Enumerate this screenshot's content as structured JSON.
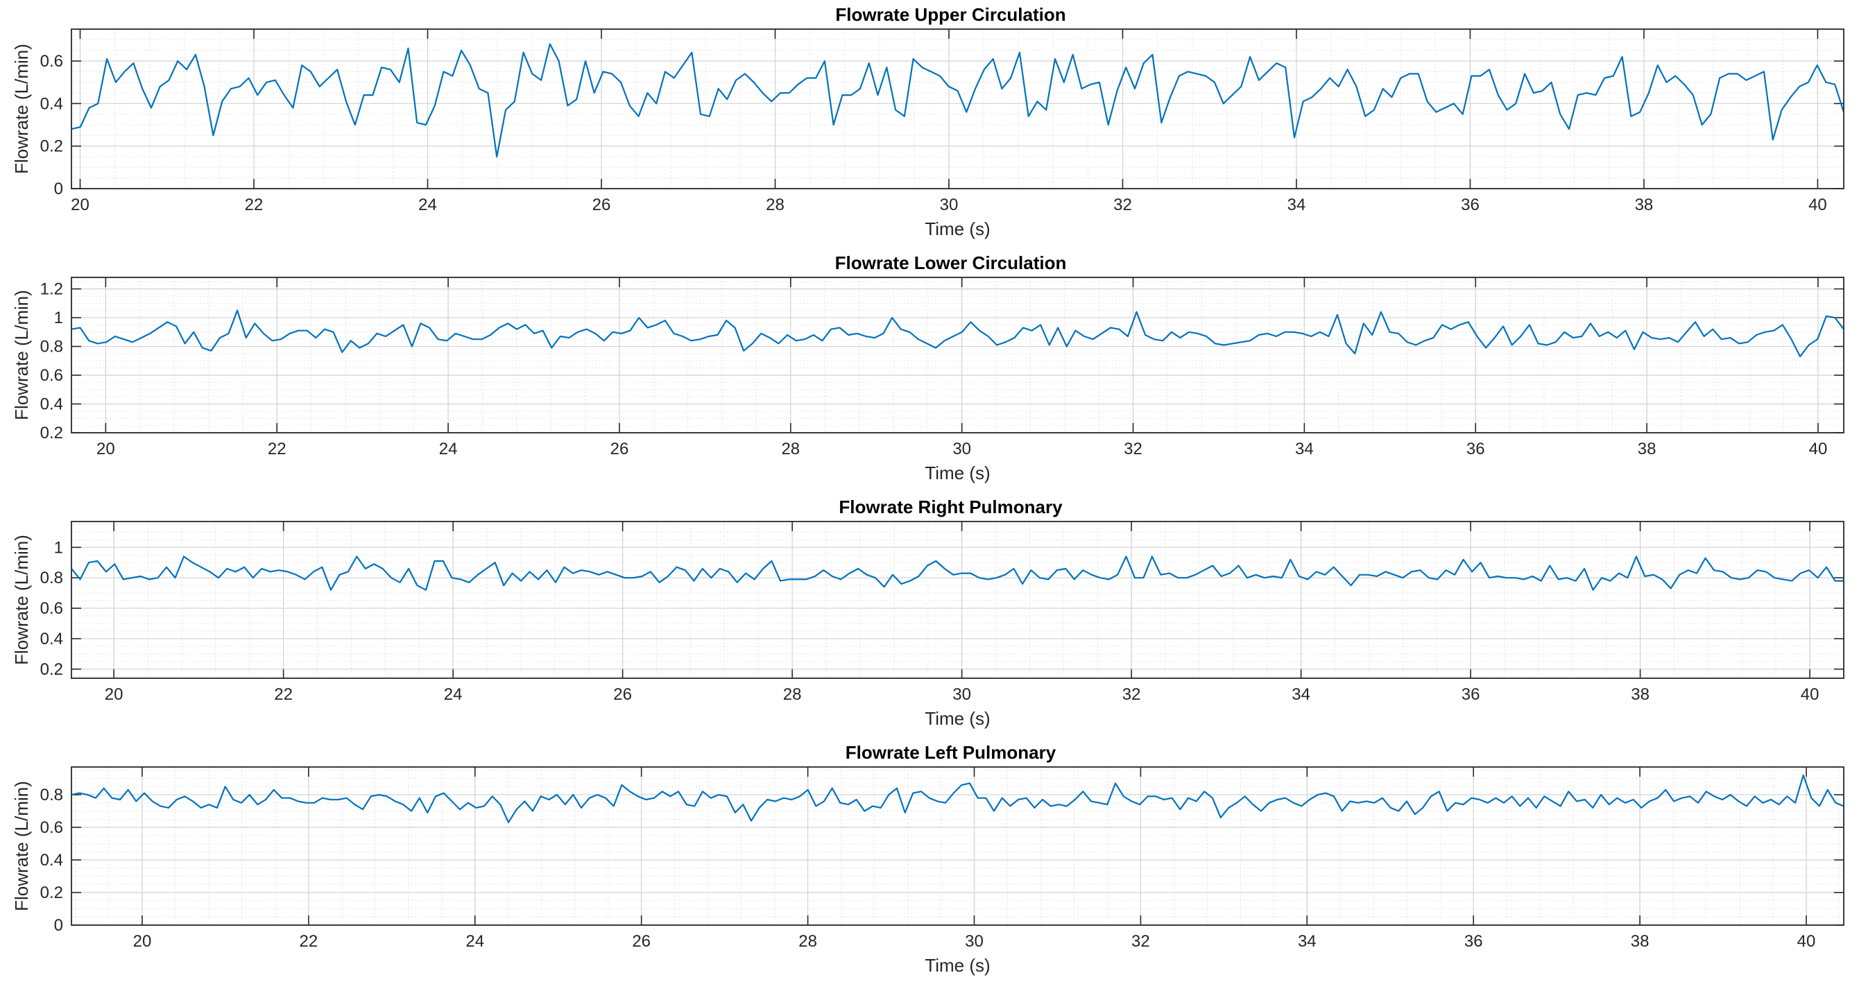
{
  "figure": {
    "title": ""
  },
  "chart_data": [
    {
      "type": "line",
      "title": "Flowrate Upper Circulation",
      "xlabel": "Time (s)",
      "ylabel": "Flowrate (L/min)",
      "xlim": [
        19.9,
        40.3
      ],
      "ylim": [
        0,
        0.75
      ],
      "xticks": [
        20,
        22,
        24,
        26,
        28,
        30,
        32,
        34,
        36,
        38,
        40
      ],
      "yticks": [
        0,
        0.2,
        0.4,
        0.6
      ],
      "ytick_labels": [
        "0",
        "0.2",
        "0.4",
        "0.6"
      ],
      "grid": "on",
      "color": "#0072BD",
      "series": [
        {
          "name": "Upper",
          "x_start": 19.9,
          "x_end": 40.3,
          "values": [
            0.28,
            0.29,
            0.38,
            0.4,
            0.61,
            0.5,
            0.55,
            0.59,
            0.47,
            0.38,
            0.48,
            0.51,
            0.6,
            0.56,
            0.63,
            0.48,
            0.25,
            0.41,
            0.47,
            0.48,
            0.52,
            0.44,
            0.5,
            0.51,
            0.44,
            0.38,
            0.58,
            0.55,
            0.48,
            0.52,
            0.56,
            0.41,
            0.3,
            0.44,
            0.44,
            0.57,
            0.56,
            0.5,
            0.66,
            0.31,
            0.3,
            0.39,
            0.55,
            0.53,
            0.65,
            0.58,
            0.47,
            0.45,
            0.15,
            0.37,
            0.41,
            0.64,
            0.54,
            0.51,
            0.68,
            0.6,
            0.39,
            0.42,
            0.6,
            0.45,
            0.55,
            0.54,
            0.5,
            0.39,
            0.34,
            0.45,
            0.4,
            0.55,
            0.52,
            0.58,
            0.64,
            0.35,
            0.34,
            0.47,
            0.42,
            0.51,
            0.54,
            0.5,
            0.45,
            0.41,
            0.45,
            0.45,
            0.49,
            0.52,
            0.52,
            0.6,
            0.3,
            0.44,
            0.44,
            0.47,
            0.59,
            0.44,
            0.57,
            0.37,
            0.34,
            0.61,
            0.57,
            0.55,
            0.53,
            0.48,
            0.46,
            0.36,
            0.47,
            0.56,
            0.61,
            0.47,
            0.52,
            0.64,
            0.34,
            0.41,
            0.37,
            0.61,
            0.5,
            0.63,
            0.47,
            0.49,
            0.5,
            0.3,
            0.46,
            0.57,
            0.47,
            0.59,
            0.63,
            0.31,
            0.43,
            0.53,
            0.55,
            0.54,
            0.53,
            0.5,
            0.4,
            0.44,
            0.48,
            0.62,
            0.51,
            0.55,
            0.59,
            0.57,
            0.24,
            0.41,
            0.43,
            0.47,
            0.52,
            0.48,
            0.56,
            0.48,
            0.34,
            0.37,
            0.47,
            0.43,
            0.52,
            0.54,
            0.54,
            0.41,
            0.36,
            0.38,
            0.4,
            0.35,
            0.53,
            0.53,
            0.56,
            0.44,
            0.37,
            0.4,
            0.54,
            0.45,
            0.46,
            0.5,
            0.35,
            0.28,
            0.44,
            0.45,
            0.44,
            0.52,
            0.53,
            0.62,
            0.34,
            0.36,
            0.45,
            0.58,
            0.5,
            0.53,
            0.49,
            0.44,
            0.3,
            0.35,
            0.52,
            0.54,
            0.54,
            0.51,
            0.53,
            0.55,
            0.23,
            0.37,
            0.43,
            0.48,
            0.5,
            0.58,
            0.5,
            0.49,
            0.36
          ]
        }
      ]
    },
    {
      "type": "line",
      "title": "Flowrate Lower Circulation",
      "xlabel": "Time (s)",
      "ylabel": "Flowrate (L/min)",
      "xlim": [
        19.6,
        40.3
      ],
      "ylim": [
        0.2,
        1.28
      ],
      "xticks": [
        20,
        22,
        24,
        26,
        28,
        30,
        32,
        34,
        36,
        38,
        40
      ],
      "yticks": [
        0.2,
        0.4,
        0.6,
        0.8,
        1,
        1.2
      ],
      "ytick_labels": [
        "0.2",
        "0.4",
        "0.6",
        "0.8",
        "1",
        "1.2"
      ],
      "grid": "on",
      "color": "#0072BD",
      "series": [
        {
          "name": "Lower",
          "x_start": 19.6,
          "x_end": 40.3,
          "values": [
            0.92,
            0.93,
            0.84,
            0.82,
            0.83,
            0.87,
            0.85,
            0.83,
            0.86,
            0.89,
            0.93,
            0.97,
            0.94,
            0.82,
            0.9,
            0.79,
            0.77,
            0.86,
            0.89,
            1.05,
            0.86,
            0.96,
            0.89,
            0.84,
            0.85,
            0.89,
            0.91,
            0.91,
            0.86,
            0.92,
            0.9,
            0.76,
            0.84,
            0.79,
            0.82,
            0.89,
            0.87,
            0.91,
            0.95,
            0.8,
            0.96,
            0.93,
            0.85,
            0.84,
            0.89,
            0.87,
            0.85,
            0.85,
            0.88,
            0.93,
            0.96,
            0.92,
            0.95,
            0.89,
            0.91,
            0.79,
            0.87,
            0.86,
            0.9,
            0.92,
            0.89,
            0.84,
            0.9,
            0.89,
            0.91,
            1.0,
            0.93,
            0.95,
            0.98,
            0.89,
            0.87,
            0.84,
            0.85,
            0.87,
            0.88,
            0.98,
            0.93,
            0.77,
            0.82,
            0.89,
            0.86,
            0.82,
            0.88,
            0.84,
            0.85,
            0.88,
            0.84,
            0.92,
            0.93,
            0.88,
            0.89,
            0.87,
            0.86,
            0.89,
            1.0,
            0.92,
            0.9,
            0.85,
            0.82,
            0.79,
            0.84,
            0.87,
            0.9,
            0.97,
            0.91,
            0.87,
            0.81,
            0.83,
            0.86,
            0.93,
            0.91,
            0.95,
            0.81,
            0.93,
            0.8,
            0.91,
            0.87,
            0.85,
            0.89,
            0.93,
            0.92,
            0.87,
            1.04,
            0.88,
            0.85,
            0.84,
            0.9,
            0.86,
            0.9,
            0.89,
            0.87,
            0.82,
            0.81,
            0.82,
            0.83,
            0.84,
            0.88,
            0.89,
            0.87,
            0.9,
            0.9,
            0.89,
            0.87,
            0.9,
            0.87,
            1.02,
            0.82,
            0.75,
            0.96,
            0.88,
            1.04,
            0.9,
            0.89,
            0.83,
            0.81,
            0.84,
            0.86,
            0.95,
            0.92,
            0.95,
            0.97,
            0.87,
            0.79,
            0.86,
            0.94,
            0.81,
            0.87,
            0.95,
            0.82,
            0.81,
            0.83,
            0.9,
            0.86,
            0.87,
            0.96,
            0.87,
            0.9,
            0.86,
            0.91,
            0.78,
            0.9,
            0.86,
            0.85,
            0.86,
            0.83,
            0.9,
            0.97,
            0.87,
            0.92,
            0.85,
            0.86,
            0.82,
            0.83,
            0.88,
            0.9,
            0.91,
            0.95,
            0.85,
            0.73,
            0.81,
            0.85,
            1.01,
            1.0,
            0.92
          ]
        }
      ]
    },
    {
      "type": "line",
      "title": "Flowrate Right Pulmonary",
      "xlabel": "Time (s)",
      "ylabel": "Flowrate (L/min)",
      "xlim": [
        19.5,
        40.4
      ],
      "ylim": [
        0.14,
        1.17
      ],
      "xticks": [
        20,
        22,
        24,
        26,
        28,
        30,
        32,
        34,
        36,
        38,
        40
      ],
      "yticks": [
        0.2,
        0.4,
        0.6,
        0.8,
        1
      ],
      "ytick_labels": [
        "0.2",
        "0.4",
        "0.6",
        "0.8",
        "1"
      ],
      "grid": "on",
      "color": "#0072BD",
      "series": [
        {
          "name": "Right",
          "x_start": 19.5,
          "x_end": 40.4,
          "values": [
            0.86,
            0.79,
            0.9,
            0.91,
            0.84,
            0.89,
            0.79,
            0.8,
            0.81,
            0.79,
            0.8,
            0.87,
            0.8,
            0.94,
            0.9,
            0.87,
            0.84,
            0.8,
            0.86,
            0.84,
            0.87,
            0.8,
            0.86,
            0.84,
            0.85,
            0.84,
            0.82,
            0.79,
            0.84,
            0.87,
            0.72,
            0.82,
            0.84,
            0.94,
            0.86,
            0.89,
            0.86,
            0.8,
            0.77,
            0.86,
            0.75,
            0.72,
            0.91,
            0.91,
            0.8,
            0.79,
            0.77,
            0.82,
            0.86,
            0.9,
            0.75,
            0.83,
            0.78,
            0.84,
            0.79,
            0.85,
            0.77,
            0.87,
            0.83,
            0.85,
            0.84,
            0.82,
            0.84,
            0.82,
            0.8,
            0.8,
            0.81,
            0.84,
            0.77,
            0.81,
            0.87,
            0.85,
            0.78,
            0.86,
            0.8,
            0.86,
            0.84,
            0.77,
            0.83,
            0.79,
            0.86,
            0.91,
            0.78,
            0.79,
            0.79,
            0.79,
            0.81,
            0.85,
            0.81,
            0.79,
            0.83,
            0.86,
            0.82,
            0.8,
            0.74,
            0.82,
            0.76,
            0.78,
            0.81,
            0.88,
            0.91,
            0.86,
            0.82,
            0.83,
            0.83,
            0.8,
            0.79,
            0.8,
            0.82,
            0.86,
            0.76,
            0.85,
            0.8,
            0.79,
            0.85,
            0.86,
            0.79,
            0.85,
            0.82,
            0.8,
            0.79,
            0.82,
            0.94,
            0.8,
            0.8,
            0.94,
            0.82,
            0.83,
            0.8,
            0.8,
            0.82,
            0.85,
            0.88,
            0.81,
            0.83,
            0.88,
            0.8,
            0.82,
            0.8,
            0.81,
            0.8,
            0.92,
            0.81,
            0.79,
            0.84,
            0.82,
            0.87,
            0.81,
            0.75,
            0.82,
            0.82,
            0.81,
            0.84,
            0.82,
            0.8,
            0.84,
            0.85,
            0.8,
            0.79,
            0.85,
            0.82,
            0.92,
            0.84,
            0.9,
            0.8,
            0.81,
            0.8,
            0.8,
            0.79,
            0.81,
            0.78,
            0.88,
            0.79,
            0.8,
            0.78,
            0.86,
            0.72,
            0.8,
            0.78,
            0.83,
            0.8,
            0.94,
            0.81,
            0.82,
            0.79,
            0.73,
            0.82,
            0.85,
            0.83,
            0.93,
            0.85,
            0.84,
            0.8,
            0.79,
            0.8,
            0.85,
            0.84,
            0.8,
            0.79,
            0.78,
            0.83,
            0.85,
            0.8,
            0.87,
            0.78,
            0.78
          ]
        }
      ]
    },
    {
      "type": "line",
      "title": "Flowrate Left Pulmonary",
      "xlabel": "Time (s)",
      "ylabel": "Flowrate (L/min)",
      "xlim": [
        19.15,
        40.45
      ],
      "ylim": [
        0,
        0.97
      ],
      "xticks": [
        20,
        22,
        24,
        26,
        28,
        30,
        32,
        34,
        36,
        38,
        40
      ],
      "yticks": [
        0,
        0.2,
        0.4,
        0.6,
        0.8
      ],
      "ytick_labels": [
        "0",
        "0.2",
        "0.4",
        "0.6",
        "0.8"
      ],
      "grid": "on",
      "color": "#0072BD",
      "series": [
        {
          "name": "Left",
          "x_start": 19.15,
          "x_end": 40.45,
          "values": [
            0.8,
            0.81,
            0.8,
            0.78,
            0.84,
            0.78,
            0.77,
            0.83,
            0.76,
            0.81,
            0.76,
            0.73,
            0.72,
            0.77,
            0.79,
            0.76,
            0.72,
            0.74,
            0.72,
            0.85,
            0.77,
            0.75,
            0.8,
            0.74,
            0.77,
            0.83,
            0.78,
            0.78,
            0.76,
            0.75,
            0.75,
            0.78,
            0.77,
            0.77,
            0.78,
            0.74,
            0.71,
            0.79,
            0.8,
            0.79,
            0.76,
            0.74,
            0.7,
            0.78,
            0.69,
            0.79,
            0.81,
            0.76,
            0.71,
            0.75,
            0.72,
            0.73,
            0.79,
            0.74,
            0.63,
            0.71,
            0.76,
            0.7,
            0.79,
            0.77,
            0.8,
            0.74,
            0.8,
            0.72,
            0.78,
            0.8,
            0.78,
            0.73,
            0.86,
            0.82,
            0.79,
            0.77,
            0.78,
            0.82,
            0.79,
            0.82,
            0.74,
            0.73,
            0.82,
            0.78,
            0.8,
            0.79,
            0.69,
            0.74,
            0.64,
            0.72,
            0.77,
            0.76,
            0.78,
            0.77,
            0.79,
            0.83,
            0.73,
            0.76,
            0.84,
            0.75,
            0.74,
            0.77,
            0.7,
            0.73,
            0.72,
            0.8,
            0.84,
            0.69,
            0.81,
            0.82,
            0.78,
            0.76,
            0.75,
            0.81,
            0.86,
            0.87,
            0.78,
            0.78,
            0.7,
            0.78,
            0.73,
            0.77,
            0.78,
            0.72,
            0.77,
            0.73,
            0.74,
            0.73,
            0.77,
            0.82,
            0.76,
            0.75,
            0.74,
            0.87,
            0.79,
            0.76,
            0.74,
            0.79,
            0.79,
            0.77,
            0.78,
            0.71,
            0.78,
            0.76,
            0.82,
            0.78,
            0.66,
            0.72,
            0.75,
            0.79,
            0.74,
            0.7,
            0.75,
            0.77,
            0.78,
            0.75,
            0.73,
            0.77,
            0.8,
            0.81,
            0.79,
            0.7,
            0.76,
            0.75,
            0.76,
            0.75,
            0.78,
            0.72,
            0.7,
            0.76,
            0.68,
            0.72,
            0.79,
            0.82,
            0.7,
            0.75,
            0.74,
            0.78,
            0.77,
            0.75,
            0.78,
            0.75,
            0.79,
            0.73,
            0.78,
            0.72,
            0.79,
            0.76,
            0.73,
            0.82,
            0.76,
            0.77,
            0.72,
            0.8,
            0.74,
            0.78,
            0.75,
            0.77,
            0.72,
            0.76,
            0.78,
            0.83,
            0.76,
            0.78,
            0.79,
            0.75,
            0.82,
            0.79,
            0.77,
            0.8,
            0.76,
            0.73,
            0.79,
            0.75,
            0.77,
            0.74,
            0.79,
            0.75,
            0.92,
            0.78,
            0.73,
            0.83,
            0.75,
            0.73
          ]
        }
      ]
    }
  ]
}
